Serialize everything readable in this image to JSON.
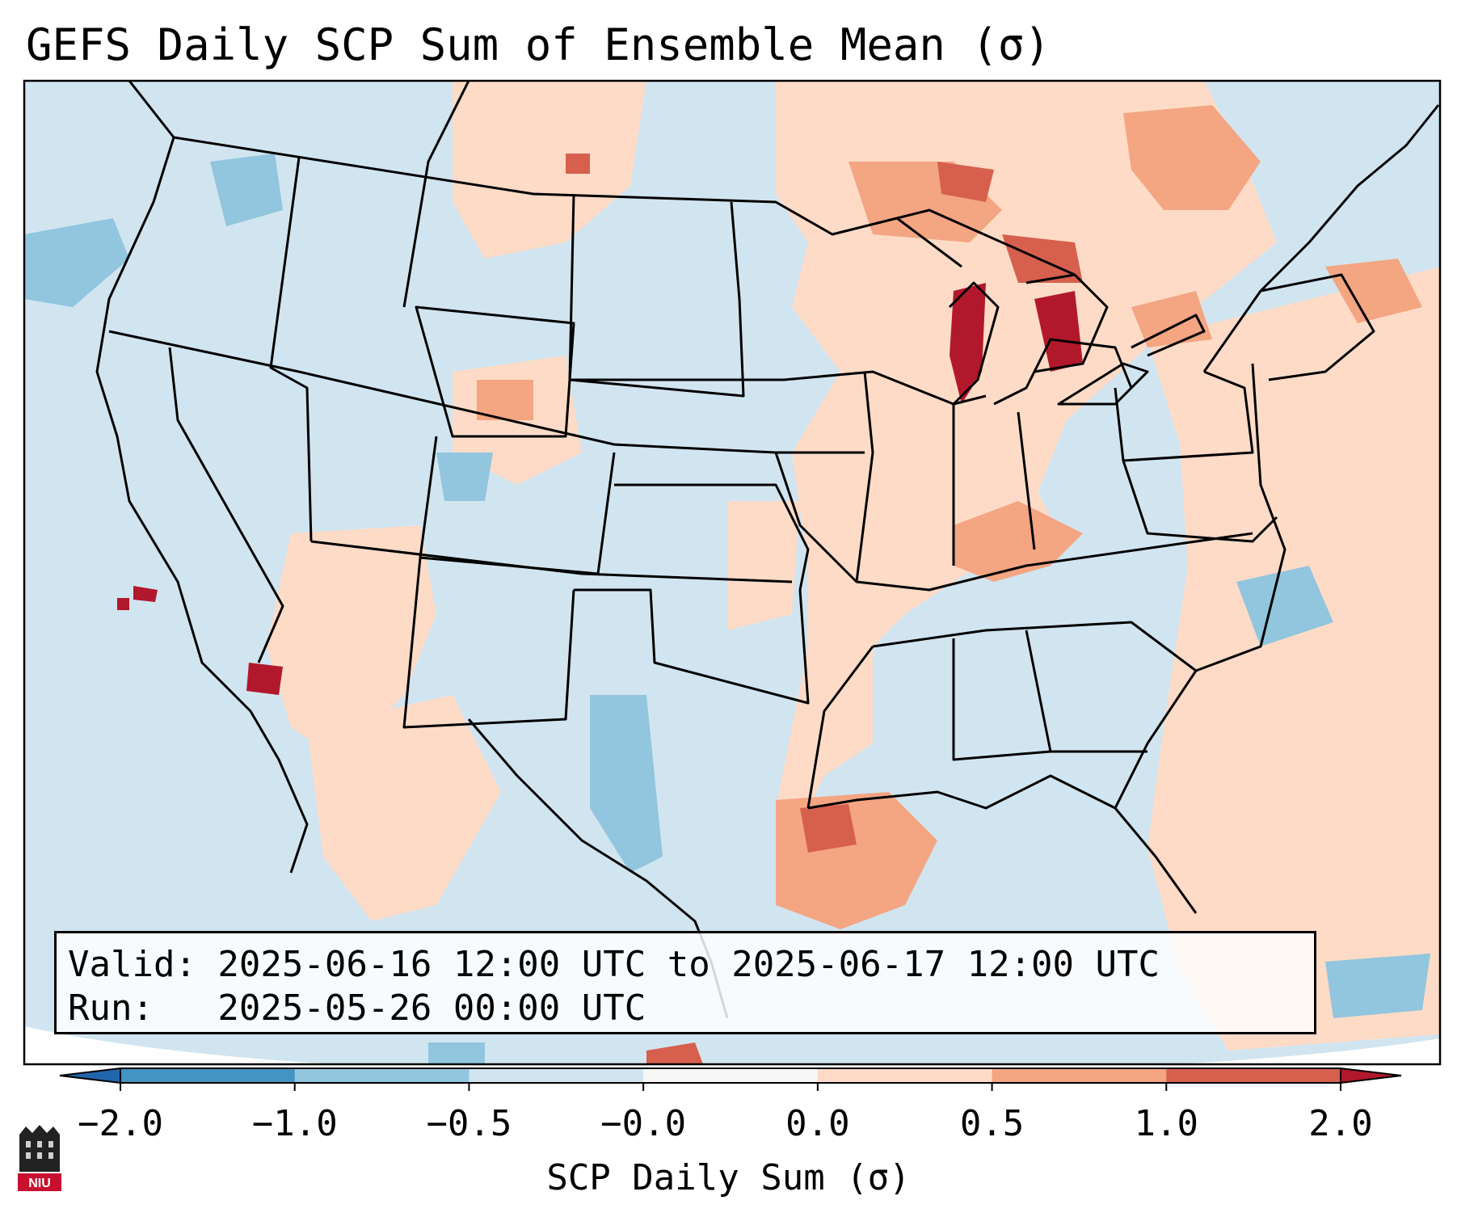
{
  "title": "GEFS Daily SCP Sum of Ensemble Mean (σ)",
  "info": {
    "valid_line": "Valid: 2025-06-16 12:00 UTC to 2025-06-17 12:00 UTC",
    "run_line": "Run:   2025-05-26 00:00 UTC"
  },
  "colorbar": {
    "label": "SCP Daily Sum (σ)",
    "ticks": [
      "−2.0",
      "−1.0",
      "−0.5",
      "−0.0",
      "0.0",
      "0.5",
      "1.0",
      "2.0"
    ],
    "bins": [
      {
        "range": "<-2.0",
        "color": "#2166ac"
      },
      {
        "range": "-2.0 to -1.0",
        "color": "#4393c3"
      },
      {
        "range": "-1.0 to -0.5",
        "color": "#92c5de"
      },
      {
        "range": "-0.5 to -0.0",
        "color": "#d1e5f0"
      },
      {
        "range": "-0.0 to 0.0",
        "color": "#f7f7f7"
      },
      {
        "range": "0.0 to 0.5",
        "color": "#fddbc7"
      },
      {
        "range": "0.5 to 1.0",
        "color": "#f4a582"
      },
      {
        "range": "1.0 to 2.0",
        "color": "#d6604d"
      },
      {
        "range": ">2.0",
        "color": "#b2182b"
      }
    ]
  },
  "map": {
    "background_color": "#d1e5f0",
    "regions": [
      {
        "name": "Upper Midwest / Great Lakes",
        "category": "0.0 to 0.5"
      },
      {
        "name": "Michigan / Lake Huron",
        "category": ">2.0"
      },
      {
        "name": "Ohio Valley / Kentucky",
        "category": "0.5 to 1.0"
      },
      {
        "name": "Southeast / Mississippi",
        "category": "0.0 to 0.5"
      },
      {
        "name": "Western Gulf of Mexico",
        "category": "1.0 to 2.0"
      },
      {
        "name": "Western Atlantic",
        "category": "0.0 to 0.5"
      },
      {
        "name": "Southern California",
        "category": ">2.0"
      },
      {
        "name": "West Texas",
        "category": "-1.0 to -0.5"
      },
      {
        "name": "New England",
        "category": "0.5 to 1.0"
      }
    ]
  },
  "logo": {
    "text": "NIU"
  }
}
